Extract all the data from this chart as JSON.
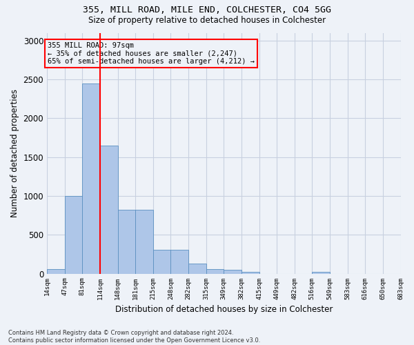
{
  "title1": "355, MILL ROAD, MILE END, COLCHESTER, CO4 5GG",
  "title2": "Size of property relative to detached houses in Colchester",
  "xlabel": "Distribution of detached houses by size in Colchester",
  "ylabel": "Number of detached properties",
  "bar_values": [
    60,
    1000,
    2450,
    1650,
    820,
    820,
    310,
    310,
    130,
    55,
    45,
    20,
    0,
    0,
    0,
    25,
    0,
    0,
    0,
    0
  ],
  "x_labels": [
    "14sqm",
    "47sqm",
    "81sqm",
    "114sqm",
    "148sqm",
    "181sqm",
    "215sqm",
    "248sqm",
    "282sqm",
    "315sqm",
    "349sqm",
    "382sqm",
    "415sqm",
    "449sqm",
    "482sqm",
    "516sqm",
    "549sqm",
    "583sqm",
    "616sqm",
    "650sqm",
    "683sqm"
  ],
  "bar_color": "#aec6e8",
  "bar_edge_color": "#5a8fc0",
  "vline_color": "red",
  "annotation_text": "355 MILL ROAD: 97sqm\n← 35% of detached houses are smaller (2,247)\n65% of semi-detached houses are larger (4,212) →",
  "annotation_box_color": "red",
  "ylim": [
    0,
    3100
  ],
  "yticks": [
    0,
    500,
    1000,
    1500,
    2000,
    2500,
    3000
  ],
  "footnote": "Contains HM Land Registry data © Crown copyright and database right 2024.\nContains public sector information licensed under the Open Government Licence v3.0.",
  "bg_color": "#eef2f8",
  "grid_color": "#c8d0e0"
}
